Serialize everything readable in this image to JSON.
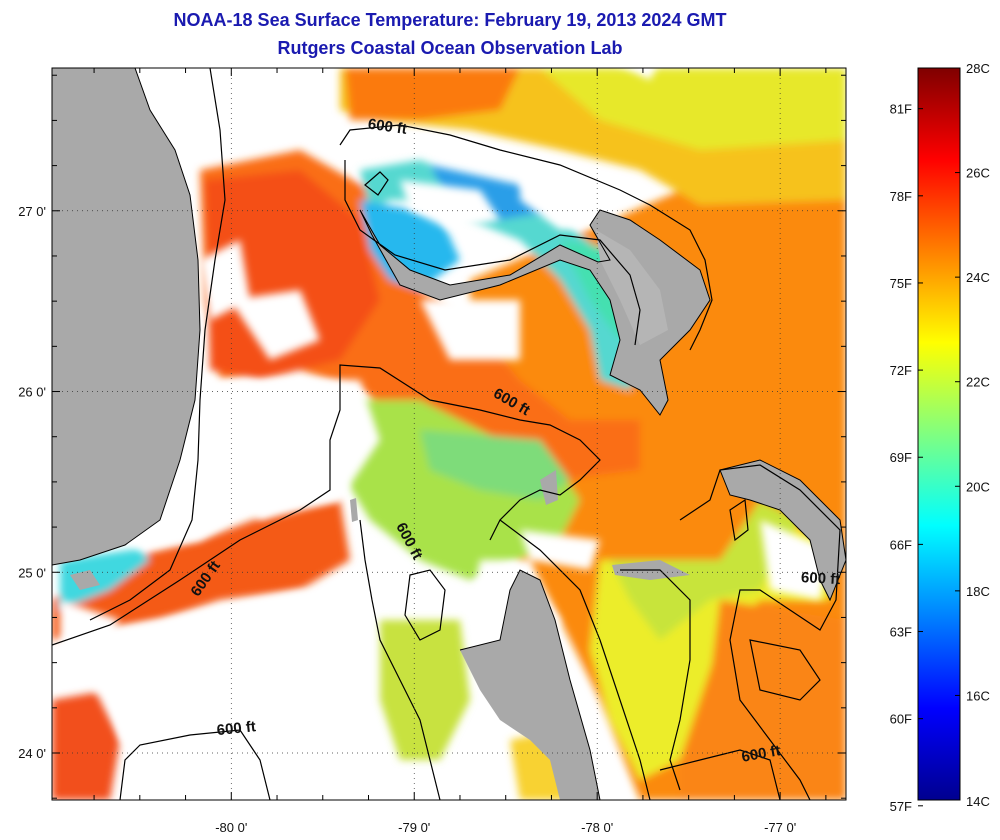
{
  "header": {
    "title": "NOAA-18 Sea Surface Temperature:  February 19, 2013 2024 GMT",
    "subtitle": "Rutgers Coastal Ocean Observation Lab"
  },
  "map": {
    "lon_range": [
      -80.98,
      -76.64
    ],
    "lat_range": [
      23.74,
      27.79
    ],
    "lon_ticks": [
      {
        "value": -80,
        "label": "-80 0'"
      },
      {
        "value": -79,
        "label": "-79 0'"
      },
      {
        "value": -78,
        "label": "-78 0'"
      },
      {
        "value": -77,
        "label": "-77 0'"
      }
    ],
    "lat_ticks": [
      {
        "value": 27,
        "label": "27 0'"
      },
      {
        "value": 26,
        "label": "26 0'"
      },
      {
        "value": 25,
        "label": "25 0'"
      },
      {
        "value": 24,
        "label": "24 0'"
      }
    ],
    "isobath_label": "600 ft",
    "isobath_labels": [
      {
        "text": "600 ft",
        "lon": -79.15,
        "lat": 27.44,
        "angle": 8
      },
      {
        "text": "600 ft",
        "lon": -78.48,
        "lat": 25.92,
        "angle": 30
      },
      {
        "text": "600 ft",
        "lon": -79.05,
        "lat": 25.16,
        "angle": 62
      },
      {
        "text": "600 ft",
        "lon": -80.12,
        "lat": 24.95,
        "angle": -55
      },
      {
        "text": "600 ft",
        "lon": -76.78,
        "lat": 24.94,
        "angle": 3
      },
      {
        "text": "600 ft",
        "lon": -79.97,
        "lat": 24.11,
        "angle": -6
      },
      {
        "text": "600 ft",
        "lon": -77.1,
        "lat": 23.97,
        "angle": -10
      }
    ],
    "colors": {
      "land": "#a9a9a9",
      "no_data": "#ffffff",
      "coast": "#000000"
    }
  },
  "colorbar": {
    "c_labels": [
      "28C",
      "26C",
      "24C",
      "22C",
      "20C",
      "18C",
      "16C",
      "14C"
    ],
    "f_labels": [
      "81F",
      "78F",
      "75F",
      "72F",
      "69F",
      "66F",
      "63F",
      "60F",
      "57F"
    ],
    "c_range": [
      14,
      28
    ],
    "stops": [
      "#7f0000",
      "#ff0000",
      "#ff8000",
      "#ffff00",
      "#80ff80",
      "#00ffff",
      "#0080ff",
      "#0000ff",
      "#00008f"
    ]
  }
}
